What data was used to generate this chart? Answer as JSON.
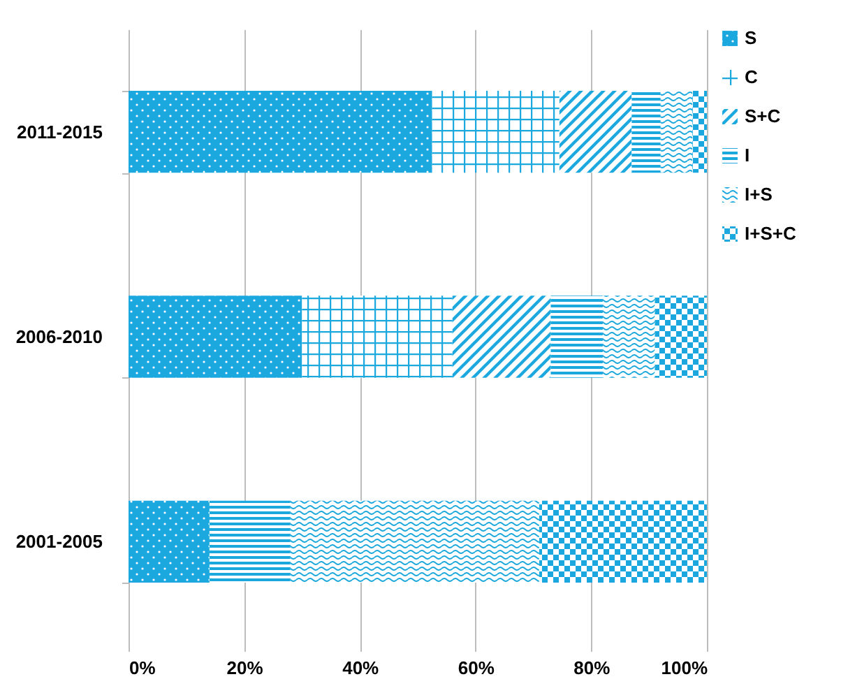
{
  "chart_data": {
    "type": "bar",
    "orientation": "horizontal",
    "stacked": true,
    "categories": [
      "2011-2015",
      "2006-2010",
      "2001-2005"
    ],
    "series": [
      {
        "name": "S",
        "color": "#1ba8df",
        "values": [
          52.5,
          30,
          14
        ]
      },
      {
        "name": "C",
        "color": "#1ba8df",
        "values": [
          22,
          26,
          0
        ]
      },
      {
        "name": "S+C",
        "color": "#1ba8df",
        "values": [
          12.5,
          17,
          0
        ]
      },
      {
        "name": "I",
        "color": "#1ba8df",
        "values": [
          5,
          9,
          14
        ]
      },
      {
        "name": "I+S",
        "color": "#1ba8df",
        "values": [
          5.5,
          9,
          43
        ]
      },
      {
        "name": "I+S+C",
        "color": "#1ba8df",
        "values": [
          2.5,
          9,
          29
        ]
      }
    ],
    "xlim": [
      0,
      100
    ],
    "xticks": [
      {
        "value": 0,
        "label": "0%"
      },
      {
        "value": 20,
        "label": "20%"
      },
      {
        "value": 40,
        "label": "40%"
      },
      {
        "value": 60,
        "label": "60%"
      },
      {
        "value": 80,
        "label": "80%"
      },
      {
        "value": 100,
        "label": "100%"
      }
    ],
    "grid": "x",
    "legend": "right"
  }
}
